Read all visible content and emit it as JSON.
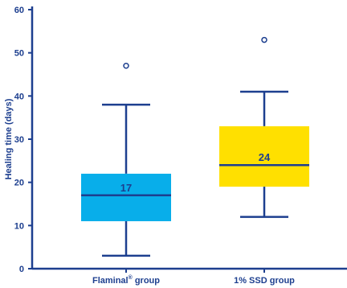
{
  "chart_data": {
    "type": "box",
    "ylabel": "Healing time (days)",
    "xlabel": "",
    "ylim": [
      0,
      60
    ],
    "yticks": [
      0,
      10,
      20,
      30,
      40,
      50,
      60
    ],
    "grid": false,
    "axis_color": "#1d3f8f",
    "groups": [
      {
        "label_main": "Flaminal",
        "label_sup": "®",
        "label_rest": " group",
        "min": 3,
        "q1": 11,
        "median": 17,
        "q3": 22,
        "max": 38,
        "outliers": [
          47
        ],
        "median_label": "17",
        "color": "#08aeea"
      },
      {
        "label_main": "1% SSD group",
        "label_sup": "",
        "label_rest": "",
        "min": 12,
        "q1": 19,
        "median": 24,
        "q3": 33,
        "max": 41,
        "outliers": [
          53
        ],
        "median_label": "24",
        "color": "#ffe000"
      }
    ]
  }
}
